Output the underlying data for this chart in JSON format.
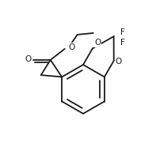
{
  "bg_color": "#ffffff",
  "line_color": "#1a1a1a",
  "line_width": 1.3,
  "font_size": 7.5,
  "figsize": [
    1.97,
    1.85
  ],
  "dpi": 100,
  "xlim": [
    0,
    197
  ],
  "ylim": [
    0,
    185
  ]
}
